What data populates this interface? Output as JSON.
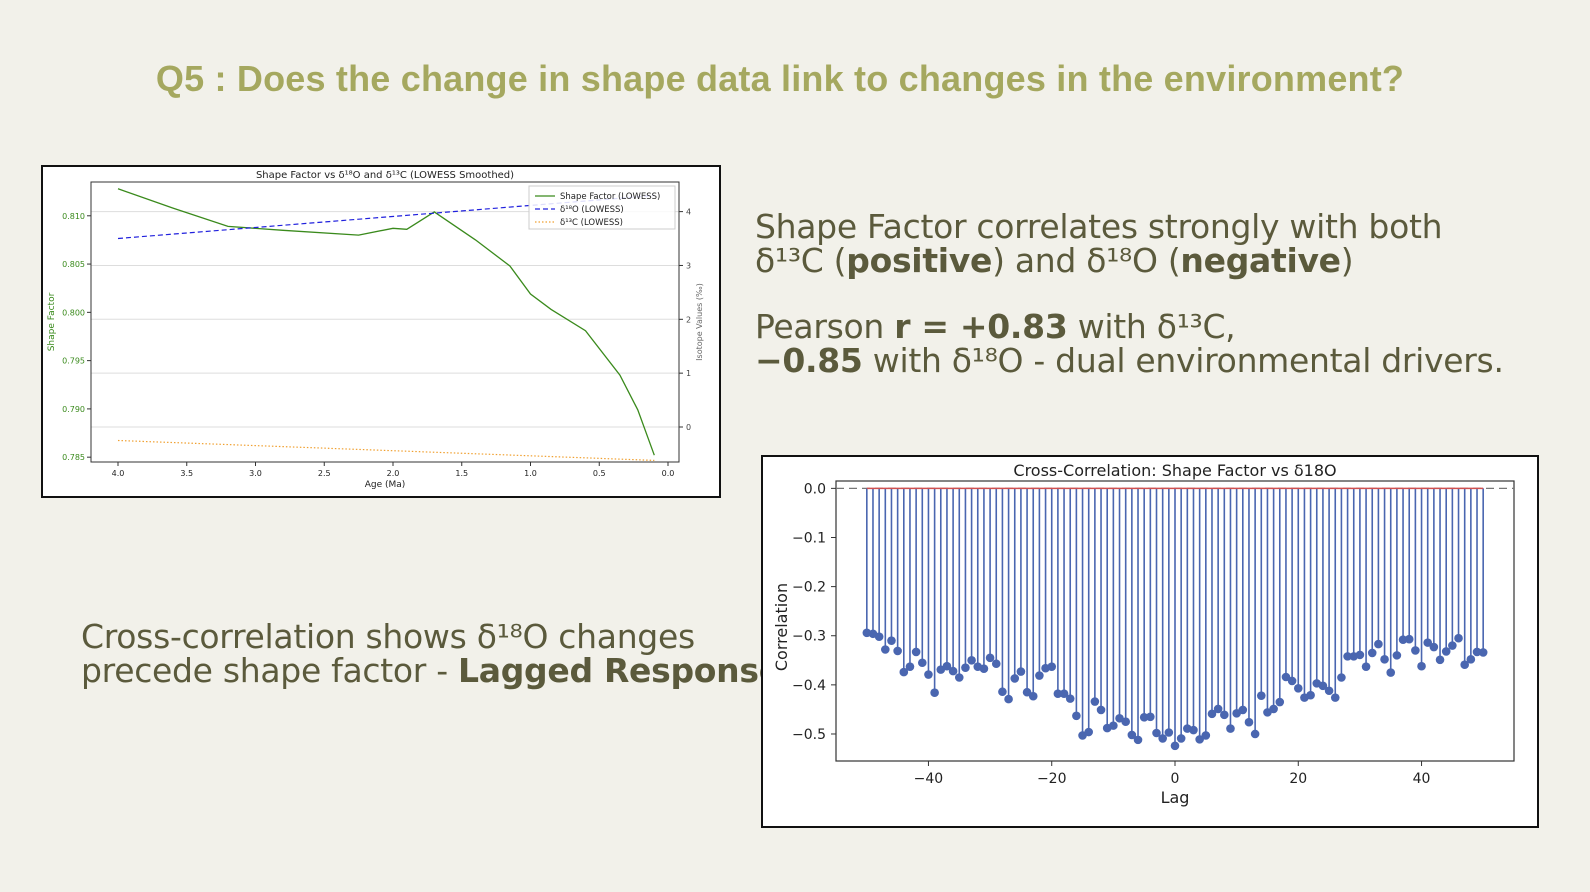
{
  "slide": {
    "title": "Q5 : Does the change in shape data link to changes in the environment?"
  },
  "statements": {
    "s1": {
      "part1": "Shape Factor correlates strongly with both",
      "part2": "δ¹³C (",
      "bold1": "positive",
      "part3": ") and δ¹⁸O (",
      "bold2": "negative",
      "part4": ")"
    },
    "s2": {
      "part1": "Pearson ",
      "bold1": "r = +0.83",
      "part2": " with δ¹³C,",
      "bold2": "−0.85",
      "part3": " with δ¹⁸O - dual environmental drivers."
    },
    "s3": {
      "line1": "Cross-correlation shows δ¹⁸O changes",
      "line2": "precede shape factor -  ",
      "bold1": "Lagged Response"
    }
  },
  "chart_data": [
    {
      "type": "line",
      "title": "Shape Factor vs δ¹⁸O and δ¹³C (LOWESS Smoothed)",
      "xlabel": "Age (Ma)",
      "ylabel": "Shape Factor",
      "y2label": "Isotope Values (‰)",
      "xlim": [
        4.0,
        0.0
      ],
      "x_reversed": true,
      "ylim": [
        0.7845,
        0.8135
      ],
      "y2lim": [
        -0.65,
        4.55
      ],
      "x_ticks": [
        4.0,
        3.5,
        3.0,
        2.5,
        2.0,
        1.5,
        1.0,
        0.5,
        0.0
      ],
      "x_tick_labels": [
        "4.0",
        "3.5",
        "3.0",
        "2.5",
        "2.0",
        "1.5",
        "1.0",
        "0.5",
        "0.0"
      ],
      "y_ticks": [
        0.785,
        0.79,
        0.795,
        0.8,
        0.805,
        0.81
      ],
      "y_tick_labels": [
        "0.785",
        "0.790",
        "0.795",
        "0.800",
        "0.805",
        "0.810"
      ],
      "y2_ticks": [
        0,
        1,
        2,
        3,
        4
      ],
      "y2_tick_labels": [
        "0",
        "1",
        "2",
        "3",
        "4"
      ],
      "grid": "y2",
      "legend": "top-right",
      "colors": {
        "shape": "#3a8a1c",
        "d18o": "#2020dd",
        "d13c": "#f0a030",
        "axis_left": "#3a8a1c",
        "axis_right": "#666666"
      },
      "series": [
        {
          "name": "Shape Factor (LOWESS)",
          "axis": "left",
          "style": "solid",
          "x": [
            4.0,
            3.6,
            3.2,
            2.8,
            2.25,
            2.0,
            1.9,
            1.7,
            1.4,
            1.15,
            1.0,
            0.85,
            0.6,
            0.35,
            0.22,
            0.1
          ],
          "y": [
            0.8128,
            0.8108,
            0.8089,
            0.8085,
            0.808,
            0.8087,
            0.8086,
            0.8104,
            0.8075,
            0.8048,
            0.8019,
            0.8003,
            0.7981,
            0.7935,
            0.7899,
            0.7852
          ]
        },
        {
          "name": "δ¹⁸O (LOWESS)",
          "axis": "right",
          "style": "dashed",
          "x": [
            4.0,
            0.1
          ],
          "y": [
            3.5,
            4.3
          ]
        },
        {
          "name": "δ¹³C (LOWESS)",
          "axis": "right",
          "style": "dotted",
          "x": [
            4.0,
            0.1
          ],
          "y": [
            -0.25,
            -0.62
          ]
        }
      ]
    },
    {
      "type": "stem",
      "title": "Cross-Correlation: Shape Factor vs δ18O",
      "xlabel": "Lag",
      "ylabel": "Correlation",
      "xlim": [
        -55,
        55
      ],
      "ylim": [
        -0.555,
        0.015
      ],
      "x_ticks": [
        -40,
        -20,
        0,
        20,
        40
      ],
      "x_tick_labels": [
        "−40",
        "−20",
        "0",
        "20",
        "40"
      ],
      "y_ticks": [
        0.0,
        -0.1,
        -0.2,
        -0.3,
        -0.4,
        -0.5
      ],
      "y_tick_labels": [
        "0.0",
        "−0.1",
        "−0.2",
        "−0.3",
        "−0.4",
        "−0.5"
      ],
      "baseline": 0,
      "colors": {
        "stem": "#4a66b0",
        "baseline": "#d05050",
        "zero_line": "#777777"
      },
      "lags": [
        -50,
        -49,
        -48,
        -47,
        -46,
        -45,
        -44,
        -43,
        -42,
        -41,
        -40,
        -39,
        -38,
        -37,
        -36,
        -35,
        -34,
        -33,
        -32,
        -31,
        -30,
        -29,
        -28,
        -27,
        -26,
        -25,
        -24,
        -23,
        -22,
        -21,
        -20,
        -19,
        -18,
        -17,
        -16,
        -15,
        -14,
        -13,
        -12,
        -11,
        -10,
        -9,
        -8,
        -7,
        -6,
        -5,
        -4,
        -3,
        -2,
        -1,
        0,
        1,
        2,
        3,
        4,
        5,
        6,
        7,
        8,
        9,
        10,
        11,
        12,
        13,
        14,
        15,
        16,
        17,
        18,
        19,
        20,
        21,
        22,
        23,
        24,
        25,
        26,
        27,
        28,
        29,
        30,
        31,
        32,
        33,
        34,
        35,
        36,
        37,
        38,
        39,
        40,
        41,
        42,
        43,
        44,
        45,
        46,
        47,
        48,
        49,
        50
      ],
      "values": [
        -0.294,
        -0.296,
        -0.302,
        -0.328,
        -0.31,
        -0.331,
        -0.374,
        -0.363,
        -0.333,
        -0.355,
        -0.379,
        -0.416,
        -0.369,
        -0.362,
        -0.372,
        -0.385,
        -0.365,
        -0.35,
        -0.363,
        -0.367,
        -0.345,
        -0.357,
        -0.414,
        -0.429,
        -0.387,
        -0.373,
        -0.415,
        -0.423,
        -0.381,
        -0.366,
        -0.363,
        -0.418,
        -0.418,
        -0.428,
        -0.463,
        -0.503,
        -0.496,
        -0.434,
        -0.451,
        -0.488,
        -0.483,
        -0.468,
        -0.475,
        -0.502,
        -0.512,
        -0.466,
        -0.465,
        -0.498,
        -0.509,
        -0.497,
        -0.524,
        -0.509,
        -0.489,
        -0.492,
        -0.511,
        -0.503,
        -0.459,
        -0.449,
        -0.461,
        -0.489,
        -0.458,
        -0.451,
        -0.476,
        -0.5,
        -0.422,
        -0.456,
        -0.449,
        -0.435,
        -0.384,
        -0.392,
        -0.407,
        -0.426,
        -0.421,
        -0.397,
        -0.402,
        -0.412,
        -0.426,
        -0.385,
        -0.342,
        -0.342,
        -0.339,
        -0.363,
        -0.335,
        -0.317,
        -0.348,
        -0.375,
        -0.34,
        -0.308,
        -0.307,
        -0.33,
        -0.362,
        -0.314,
        -0.323,
        -0.349,
        -0.332,
        -0.32,
        -0.305,
        -0.359,
        -0.348,
        -0.333,
        -0.334
      ]
    }
  ]
}
